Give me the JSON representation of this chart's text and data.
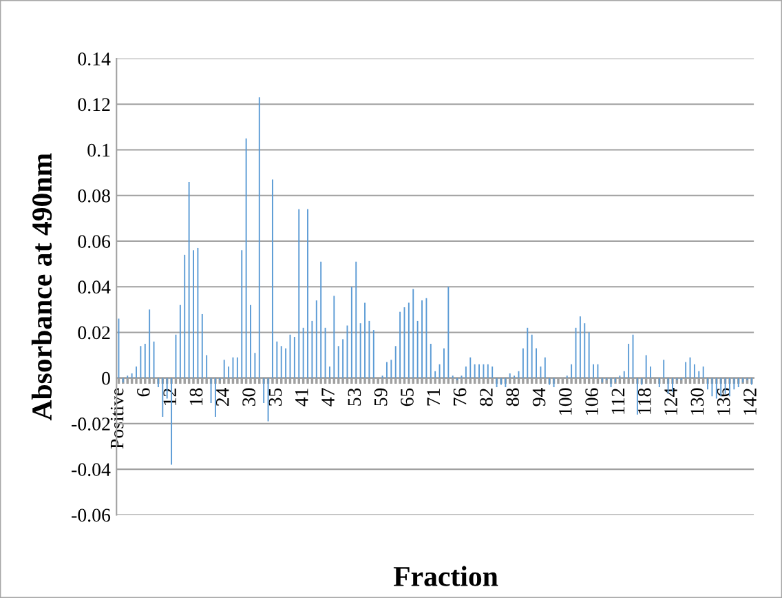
{
  "chart_data": {
    "type": "bar",
    "xlabel": "Fraction",
    "ylabel": "Absorbance at 490nm",
    "categories": [
      "Positive",
      null,
      null,
      null,
      null,
      null,
      "6",
      null,
      null,
      null,
      null,
      null,
      "12",
      null,
      null,
      null,
      null,
      null,
      "18",
      null,
      null,
      null,
      null,
      null,
      "24",
      null,
      null,
      null,
      null,
      null,
      "30",
      null,
      null,
      null,
      null,
      null,
      "35",
      null,
      null,
      null,
      null,
      null,
      "41",
      null,
      null,
      null,
      null,
      null,
      "47",
      null,
      null,
      null,
      null,
      null,
      "53",
      null,
      null,
      null,
      null,
      null,
      "59",
      null,
      null,
      null,
      null,
      null,
      "65",
      null,
      null,
      null,
      null,
      null,
      "71",
      null,
      null,
      null,
      null,
      null,
      "76",
      null,
      null,
      null,
      null,
      null,
      "82",
      null,
      null,
      null,
      null,
      null,
      "88",
      null,
      null,
      null,
      null,
      null,
      "94",
      null,
      null,
      null,
      null,
      null,
      "100",
      null,
      null,
      null,
      null,
      null,
      "106",
      null,
      null,
      null,
      null,
      null,
      "112",
      null,
      null,
      null,
      null,
      null,
      "118",
      null,
      null,
      null,
      null,
      null,
      "124",
      null,
      null,
      null,
      null,
      null,
      "130",
      null,
      null,
      null,
      null,
      null,
      "136",
      null,
      null,
      null,
      null,
      null,
      "142"
    ],
    "series": [
      {
        "color": "#5b9bd5",
        "values": [
          0.026,
          -0.002,
          0.001,
          0.002,
          0.005,
          0.014,
          0.015,
          0.03,
          0.016,
          -0.004,
          -0.017,
          -0.009,
          -0.038,
          0.019,
          0.032,
          0.054,
          0.086,
          0.056,
          0.057,
          0.028,
          0.01,
          -0.011,
          -0.017,
          -0.001,
          0.008,
          0.005,
          0.009,
          0.009,
          0.056,
          0.105,
          0.032,
          0.011,
          0.123,
          -0.011,
          -0.019,
          0.087,
          0.016,
          0.014,
          0.013,
          0.019,
          0.018,
          0.074,
          0.022,
          0.074,
          0.025,
          0.034,
          0.051,
          0.022,
          0.005,
          0.036,
          0.014,
          0.017,
          0.023,
          0.04,
          0.051,
          0.024,
          0.033,
          0.025,
          0.021,
          0,
          0.001,
          0.007,
          0.008,
          0.014,
          0.029,
          0.031,
          0.033,
          0.039,
          0.025,
          0.034,
          0.035,
          0.015,
          0.003,
          0.006,
          0.013,
          0.04,
          0.001,
          -0.001,
          0.001,
          0.005,
          0.009,
          0.006,
          0.006,
          0.006,
          0.006,
          0.005,
          -0.004,
          -0.003,
          -0.004,
          0.002,
          0.001,
          0.003,
          0.013,
          0.022,
          0.019,
          0.013,
          0.005,
          0.009,
          -0.003,
          -0.004,
          0,
          0,
          0.001,
          0.006,
          0.022,
          0.027,
          0.024,
          0.02,
          0.006,
          0.006,
          -0.002,
          -0.001,
          -0.004,
          -0.002,
          0.001,
          0.003,
          0.015,
          0.019,
          -0.016,
          -0.003,
          0.01,
          0.005,
          0,
          -0.004,
          0.008,
          -0.007,
          -0.006,
          -0.001,
          -0.001,
          0.007,
          0.009,
          0.006,
          0.003,
          0.005,
          -0.005,
          -0.008,
          -0.009,
          -0.008,
          -0.007,
          -0.008,
          -0.005,
          -0.004,
          -0.002,
          -0.001,
          -0.003
        ]
      }
    ],
    "ylim": [
      -0.06,
      0.14
    ],
    "yticks": [
      -0.06,
      -0.04,
      -0.02,
      0,
      0.02,
      0.04,
      0.06,
      0.08,
      0.1,
      0.12,
      0.14
    ],
    "grid": "y"
  }
}
